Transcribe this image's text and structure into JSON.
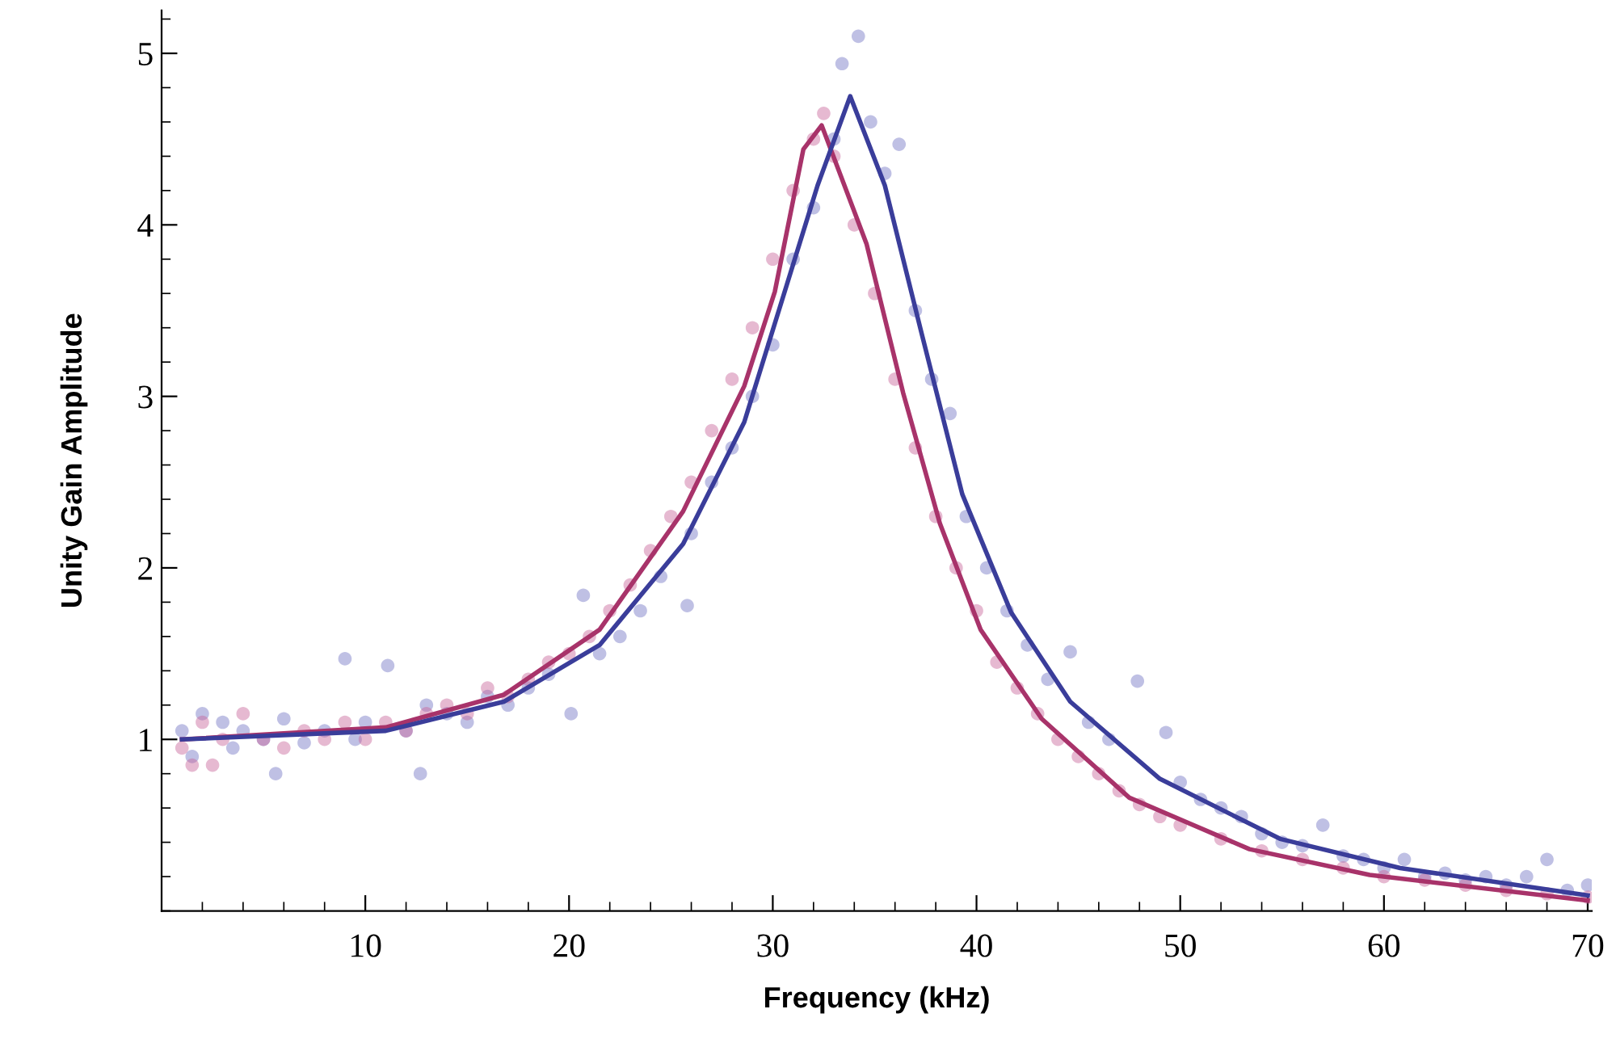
{
  "chart_data": {
    "type": "scatter",
    "xlabel": "Frequency (kHz)",
    "ylabel": "Unity Gain Amplitude",
    "xlim": [
      0,
      70.2
    ],
    "ylim": [
      0,
      5.25
    ],
    "xticks": [
      10,
      20,
      30,
      40,
      50,
      60,
      70
    ],
    "yticks": [
      1,
      2,
      3,
      4,
      5
    ],
    "grid": false,
    "legend": false,
    "series": [
      {
        "marker": "circle",
        "color": "#7074c4",
        "x": [
          1,
          1.5,
          2,
          3,
          3.5,
          4,
          5,
          5.6,
          6,
          7,
          8,
          9,
          9.5,
          10,
          11.1,
          12,
          12.7,
          13,
          14,
          15,
          16,
          17,
          18,
          19,
          20.1,
          20.7,
          21.5,
          22.5,
          23.5,
          24.5,
          25.8,
          26,
          27,
          28,
          29,
          30,
          31,
          32,
          33,
          33.4,
          34.2,
          34.8,
          35.5,
          36.2,
          37,
          37.8,
          38.7,
          39.5,
          40.5,
          41.5,
          42.5,
          43.5,
          44.6,
          45.5,
          46.5,
          47.9,
          49.3,
          50,
          51,
          52,
          53,
          54,
          55,
          56,
          57,
          58,
          59,
          60,
          61,
          62,
          63,
          64,
          65,
          66,
          67,
          68,
          69,
          70
        ],
        "values": [
          1.05,
          0.9,
          1.15,
          1.1,
          0.95,
          1.05,
          1.0,
          0.8,
          1.12,
          0.98,
          1.05,
          1.47,
          1.0,
          1.1,
          1.43,
          1.05,
          0.8,
          1.2,
          1.15,
          1.1,
          1.25,
          1.2,
          1.3,
          1.38,
          1.15,
          1.84,
          1.5,
          1.6,
          1.75,
          1.95,
          1.78,
          2.2,
          2.5,
          2.7,
          3.0,
          3.3,
          3.8,
          4.1,
          4.5,
          4.94,
          5.1,
          4.6,
          4.3,
          4.47,
          3.5,
          3.1,
          2.9,
          2.3,
          2.0,
          1.75,
          1.55,
          1.35,
          1.51,
          1.1,
          1.0,
          1.34,
          1.04,
          0.75,
          0.65,
          0.6,
          0.55,
          0.45,
          0.4,
          0.38,
          0.5,
          0.32,
          0.3,
          0.25,
          0.3,
          0.2,
          0.22,
          0.18,
          0.2,
          0.15,
          0.2,
          0.3,
          0.12,
          0.15
        ]
      },
      {
        "marker": "circle",
        "color": "#c8649a",
        "x": [
          1,
          1.5,
          2,
          2.5,
          3,
          4,
          5,
          6,
          7,
          8,
          9,
          10,
          11,
          12,
          13,
          14,
          15,
          16,
          17,
          18,
          19,
          20,
          21,
          22,
          23,
          24,
          25,
          26,
          27,
          28,
          29,
          30,
          31,
          32,
          32.5,
          33,
          34,
          35,
          36,
          37,
          38,
          39,
          40,
          41,
          42,
          43,
          44,
          45,
          46,
          47,
          48,
          49,
          50,
          52,
          54,
          56,
          58,
          60,
          62,
          64,
          66,
          68,
          70
        ],
        "values": [
          0.95,
          0.85,
          1.1,
          0.85,
          1.0,
          1.15,
          1.0,
          0.95,
          1.05,
          1.0,
          1.1,
          1.0,
          1.1,
          1.05,
          1.15,
          1.2,
          1.15,
          1.3,
          1.25,
          1.35,
          1.45,
          1.5,
          1.6,
          1.75,
          1.9,
          2.1,
          2.3,
          2.5,
          2.8,
          3.1,
          3.4,
          3.8,
          4.2,
          4.5,
          4.65,
          4.4,
          4.0,
          3.6,
          3.1,
          2.7,
          2.3,
          2.0,
          1.75,
          1.45,
          1.3,
          1.15,
          1.0,
          0.9,
          0.8,
          0.7,
          0.62,
          0.55,
          0.5,
          0.42,
          0.35,
          0.3,
          0.25,
          0.2,
          0.18,
          0.15,
          0.12,
          0.1,
          0.08
        ]
      },
      {
        "type": "line",
        "color": "#a8336a",
        "marker": "none",
        "line_style": "solid",
        "x": [
          1,
          11,
          16.8,
          21.5,
          25.6,
          28.6,
          30.1,
          31.5,
          32.4,
          34.6,
          36.4,
          38.2,
          40.2,
          43.2,
          47.5,
          53.4,
          59.3,
          70
        ],
        "values": [
          1.0,
          1.07,
          1.26,
          1.64,
          2.33,
          3.06,
          3.61,
          4.44,
          4.58,
          3.89,
          3.02,
          2.26,
          1.64,
          1.12,
          0.66,
          0.36,
          0.21,
          0.06
        ]
      },
      {
        "type": "line",
        "color": "#3a3d9a",
        "marker": "none",
        "line_style": "solid",
        "x": [
          1,
          11,
          16.8,
          21.5,
          25.6,
          28.6,
          30.4,
          32.2,
          33.8,
          35.5,
          37.3,
          39.3,
          41.7,
          44.6,
          49,
          54.9,
          60.8,
          70
        ],
        "values": [
          1.0,
          1.05,
          1.22,
          1.55,
          2.14,
          2.85,
          3.54,
          4.23,
          4.75,
          4.23,
          3.37,
          2.43,
          1.74,
          1.22,
          0.77,
          0.42,
          0.25,
          0.09
        ]
      }
    ]
  }
}
